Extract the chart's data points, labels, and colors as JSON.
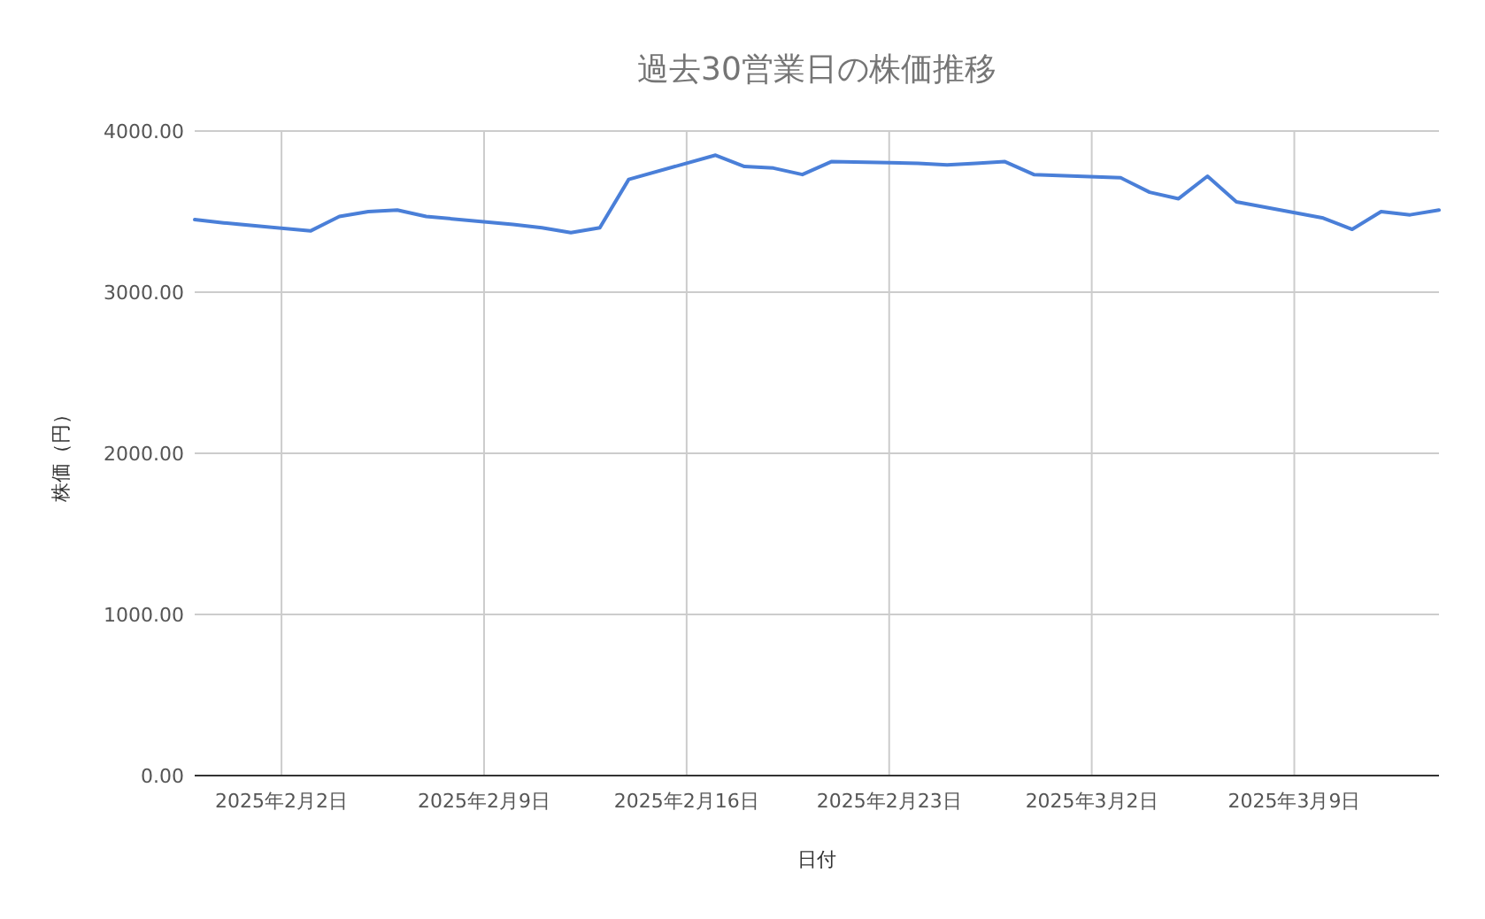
{
  "chart_data": {
    "type": "line",
    "title": "過去30営業日の株価推移",
    "xlabel": "日付",
    "ylabel": "株価（円）",
    "x": [
      "2025-01-30",
      "2025-01-31",
      "2025-02-03",
      "2025-02-04",
      "2025-02-05",
      "2025-02-06",
      "2025-02-07",
      "2025-02-10",
      "2025-02-11",
      "2025-02-12",
      "2025-02-13",
      "2025-02-14",
      "2025-02-17",
      "2025-02-18",
      "2025-02-19",
      "2025-02-20",
      "2025-02-21",
      "2025-02-24",
      "2025-02-25",
      "2025-02-26",
      "2025-02-27",
      "2025-02-28",
      "2025-03-03",
      "2025-03-04",
      "2025-03-05",
      "2025-03-06",
      "2025-03-07",
      "2025-03-10",
      "2025-03-11",
      "2025-03-12",
      "2025-03-13",
      "2025-03-14"
    ],
    "series": [
      {
        "color": "#4a7fd8",
        "values": [
          3450,
          3430,
          3380,
          3470,
          3500,
          3510,
          3470,
          3420,
          3400,
          3370,
          3400,
          3700,
          3850,
          3780,
          3770,
          3730,
          3810,
          3800,
          3790,
          3800,
          3810,
          3730,
          3710,
          3620,
          3580,
          3720,
          3560,
          3460,
          3390,
          3500,
          3480,
          3510
        ]
      }
    ],
    "xlim": [
      "2025-01-30",
      "2025-03-14"
    ],
    "xticks": [
      {
        "value": "2025-02-02",
        "label": "2025年2月2日"
      },
      {
        "value": "2025-02-09",
        "label": "2025年2月9日"
      },
      {
        "value": "2025-02-16",
        "label": "2025年2月16日"
      },
      {
        "value": "2025-02-23",
        "label": "2025年2月23日"
      },
      {
        "value": "2025-03-02",
        "label": "2025年3月2日"
      },
      {
        "value": "2025-03-09",
        "label": "2025年3月9日"
      }
    ],
    "ylim": [
      0,
      4000
    ],
    "yticks": [
      {
        "value": 0,
        "label": "0.00"
      },
      {
        "value": 1000,
        "label": "1000.00"
      },
      {
        "value": 2000,
        "label": "2000.00"
      },
      {
        "value": 3000,
        "label": "3000.00"
      },
      {
        "value": 4000,
        "label": "4000.00"
      }
    ],
    "grid": true,
    "marker": "none",
    "line_style": "solid"
  }
}
